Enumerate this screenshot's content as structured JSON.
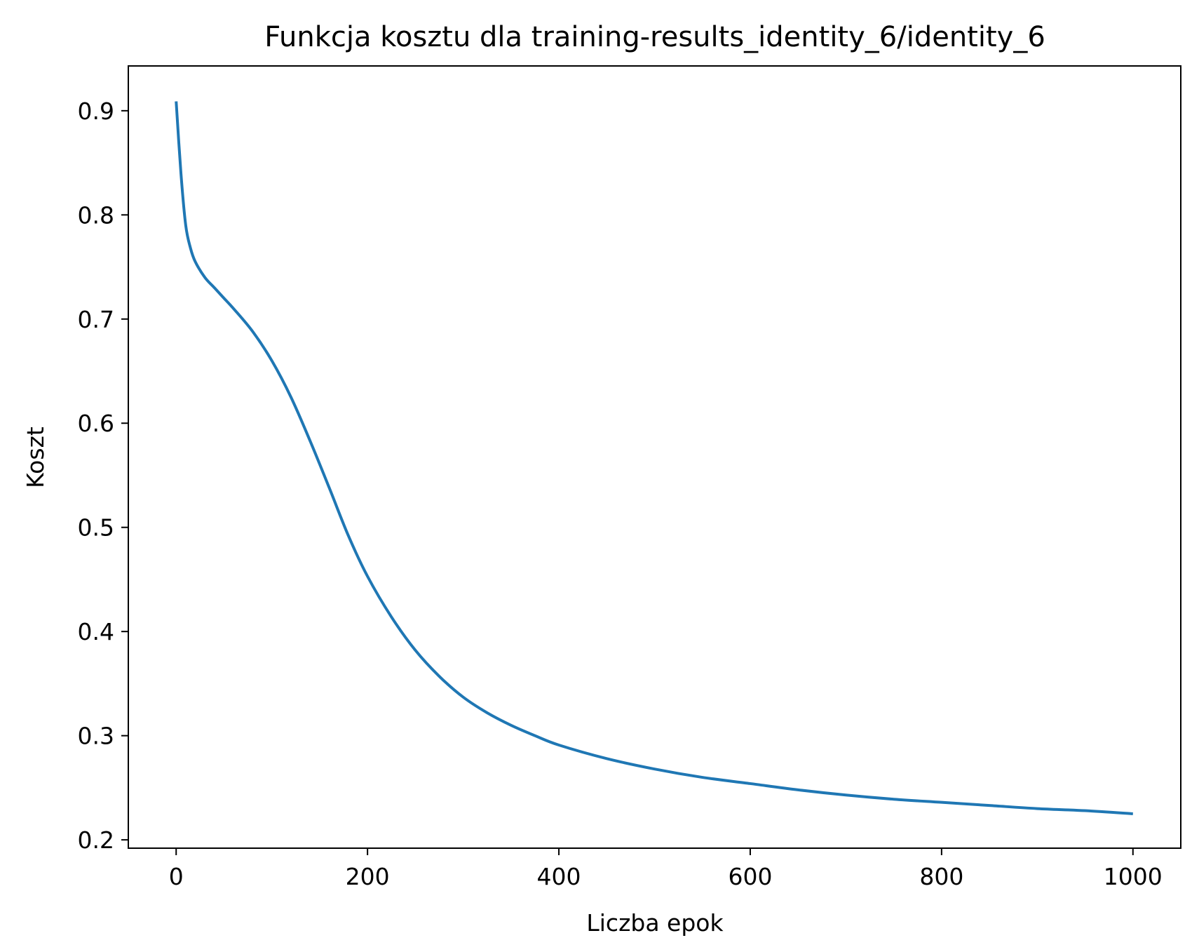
{
  "chart_data": {
    "type": "line",
    "title": "Funkcja kosztu dla training-results_identity_6/identity_6",
    "xlabel": "Liczba epok",
    "ylabel": "Koszt",
    "xlim": [
      -50,
      1050
    ],
    "ylim": [
      0.192,
      0.943
    ],
    "xticks": [
      0,
      200,
      400,
      600,
      800,
      1000
    ],
    "xtick_labels": [
      "0",
      "200",
      "400",
      "600",
      "800",
      "1000"
    ],
    "yticks": [
      0.2,
      0.3,
      0.4,
      0.5,
      0.6,
      0.7,
      0.8,
      0.9
    ],
    "ytick_labels": [
      "0.2",
      "0.3",
      "0.4",
      "0.5",
      "0.6",
      "0.7",
      "0.8",
      "0.9"
    ],
    "grid": false,
    "series": [
      {
        "color": "#1f77b4",
        "x": [
          0,
          5,
          10,
          15,
          20,
          30,
          40,
          50,
          60,
          80,
          100,
          120,
          140,
          160,
          180,
          200,
          225,
          250,
          275,
          300,
          325,
          350,
          375,
          400,
          450,
          500,
          550,
          600,
          650,
          700,
          750,
          800,
          850,
          900,
          950,
          1000
        ],
        "y": [
          0.909,
          0.84,
          0.79,
          0.768,
          0.755,
          0.74,
          0.73,
          0.72,
          0.71,
          0.688,
          0.66,
          0.625,
          0.583,
          0.538,
          0.492,
          0.453,
          0.414,
          0.382,
          0.357,
          0.337,
          0.322,
          0.31,
          0.3,
          0.291,
          0.278,
          0.268,
          0.26,
          0.254,
          0.248,
          0.243,
          0.239,
          0.236,
          0.233,
          0.23,
          0.228,
          0.225
        ]
      }
    ]
  }
}
